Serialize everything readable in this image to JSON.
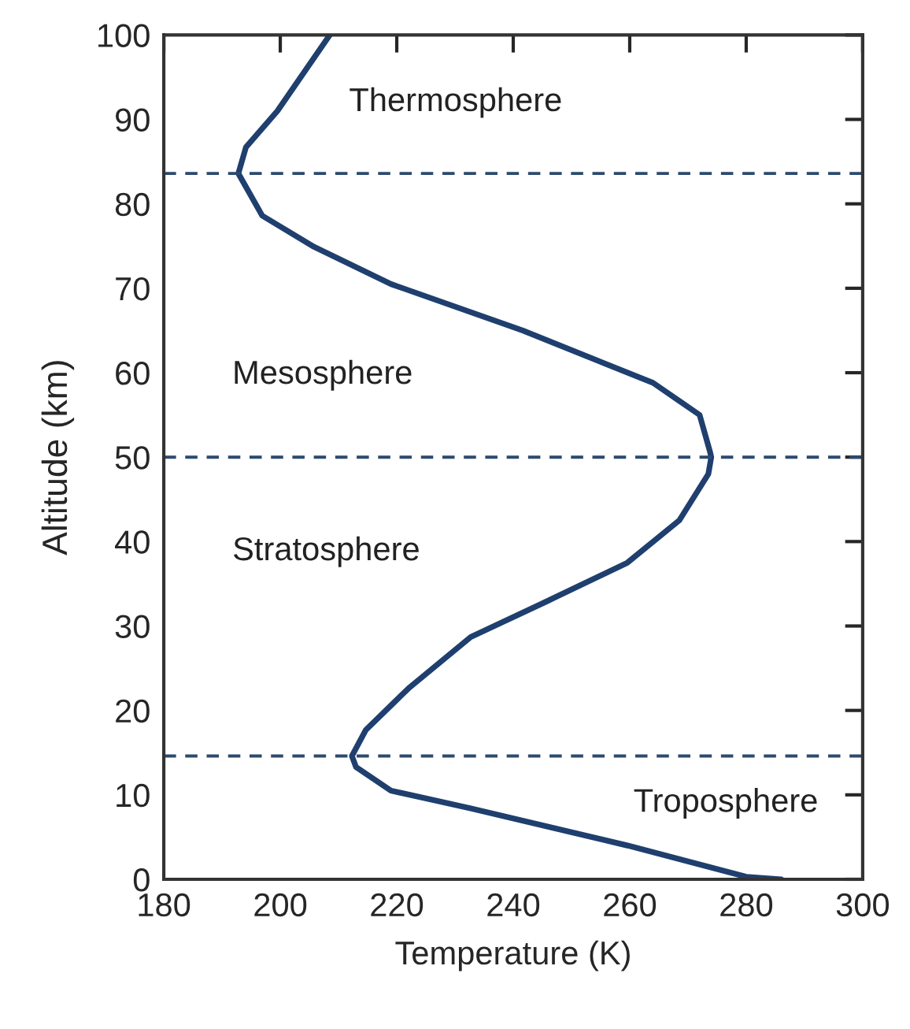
{
  "chart_data": {
    "type": "line",
    "xlabel": "Temperature (K)",
    "ylabel": "Altitude (km)",
    "xlim": [
      180,
      300
    ],
    "xticks": [
      180,
      200,
      220,
      240,
      260,
      280,
      300
    ],
    "ylim": [
      0,
      100
    ],
    "yticks": [
      0,
      10,
      20,
      30,
      40,
      50,
      60,
      70,
      80,
      90,
      100
    ],
    "grid": false,
    "legend": false,
    "marker": "none",
    "line_style": "solid",
    "series": [
      {
        "color": "#1f3f6e",
        "x": [
          286,
          280,
          259.6,
          232.7,
          219,
          213,
          212.3,
          214.7,
          222,
          232.7,
          246,
          259.6,
          268.5,
          273.5,
          274,
          273.8,
          272,
          264,
          241.6,
          219,
          205.8,
          196.9,
          192.8,
          194.1,
          199.5,
          208.5
        ],
        "values": [
          0,
          0.3,
          4,
          8.4,
          10.5,
          13.3,
          14.6,
          17.7,
          22.6,
          28.7,
          33,
          37.5,
          42.5,
          48,
          50,
          50.6,
          55,
          58.8,
          65,
          70.5,
          74.9,
          78.6,
          83.6,
          86.7,
          91,
          100
        ]
      }
    ],
    "ref_lines": [
      {
        "axis": "y",
        "value": 83.6,
        "color": "#2c4a6e",
        "line_style": "dashed"
      },
      {
        "axis": "y",
        "value": 50,
        "color": "#2c4a6e",
        "line_style": "dashed"
      },
      {
        "axis": "y",
        "value": 14.6,
        "color": "#2c4a6e",
        "line_style": "dashed"
      }
    ],
    "annotations": [
      "Thermosphere",
      "Mesosphere",
      "Stratosphere",
      "Troposphere"
    ]
  }
}
